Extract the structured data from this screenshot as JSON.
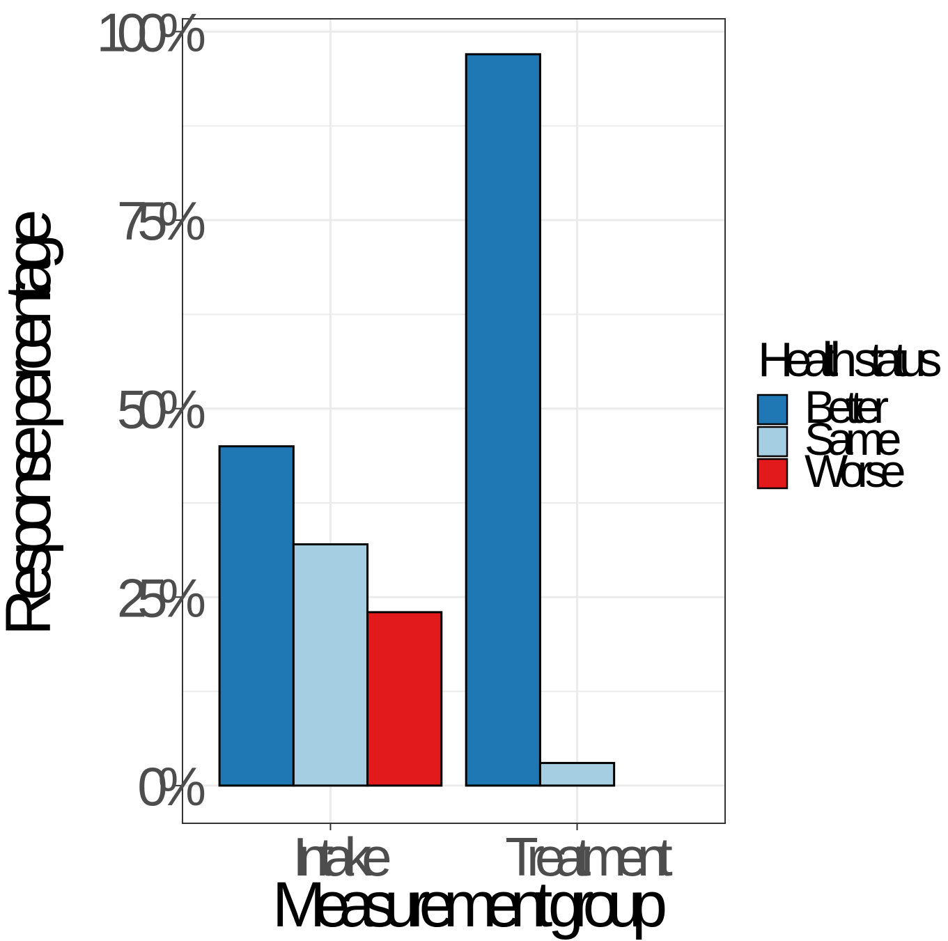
{
  "chart_data": {
    "type": "bar",
    "xlabel": "Measurement group",
    "ylabel": "Response percentage",
    "categories": [
      "Intake",
      "Treatment"
    ],
    "series": [
      {
        "name": "Better",
        "color": "#1f78b4",
        "values": [
          45,
          97
        ]
      },
      {
        "name": "Same",
        "color": "#a6cee3",
        "values": [
          32,
          3
        ]
      },
      {
        "name": "Worse",
        "color": "#e31a1c",
        "values": [
          23,
          0
        ]
      }
    ],
    "ylim": [
      -5,
      101.7
    ],
    "yticks": [
      0,
      25,
      50,
      75,
      100
    ],
    "ytick_labels": [
      "0%",
      "25%",
      "50%",
      "75%",
      "100%"
    ],
    "grid": true,
    "legend": {
      "title": "Health status",
      "position": "right"
    }
  }
}
